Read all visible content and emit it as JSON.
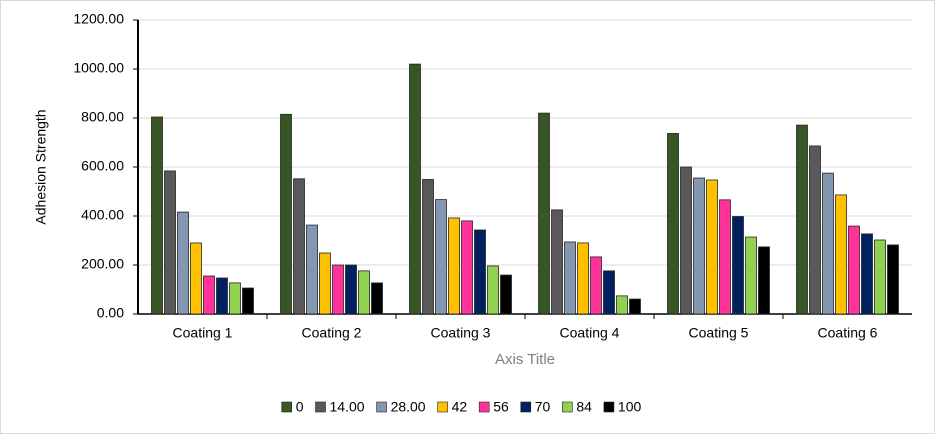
{
  "chart_data": {
    "type": "bar",
    "categories": [
      "Coating 1",
      "Coating 2",
      "Coating 3",
      "Coating 4",
      "Coating 5",
      "Coating 6"
    ],
    "series": [
      {
        "name": "0",
        "color": "#375623",
        "values": [
          804,
          815,
          1020,
          820,
          737,
          771
        ]
      },
      {
        "name": "14.00",
        "color": "#595959",
        "values": [
          584,
          552,
          549,
          425,
          600,
          686
        ]
      },
      {
        "name": "28.00",
        "color": "#8497b0",
        "values": [
          416,
          363,
          467,
          294,
          555,
          575
        ]
      },
      {
        "name": "42",
        "color": "#ffc000",
        "values": [
          290,
          249,
          392,
          290,
          547,
          486
        ]
      },
      {
        "name": "56",
        "color": "#ff3399",
        "values": [
          155,
          200,
          380,
          233,
          466,
          359
        ]
      },
      {
        "name": "70",
        "color": "#002060",
        "values": [
          147,
          200,
          343,
          176,
          398,
          327
        ]
      },
      {
        "name": "84",
        "color": "#92d050",
        "values": [
          127,
          176,
          196,
          74,
          314,
          302
        ]
      },
      {
        "name": "100",
        "color": "#000000",
        "values": [
          106,
          127,
          159,
          61,
          274,
          282
        ]
      }
    ],
    "ylim": [
      0,
      1200
    ],
    "yticks": [
      {
        "value": 0,
        "label": "0.00"
      },
      {
        "value": 200,
        "label": "200.00"
      },
      {
        "value": 400,
        "label": "400.00"
      },
      {
        "value": 600,
        "label": "600.00"
      },
      {
        "value": 800,
        "label": "800.00"
      },
      {
        "value": 1000,
        "label": "1000.00"
      },
      {
        "value": 1200,
        "label": "1200.00"
      }
    ],
    "y_label": "Adhesion Strength",
    "x_label": "Axis Title",
    "grid": true,
    "legend": "bottom"
  }
}
